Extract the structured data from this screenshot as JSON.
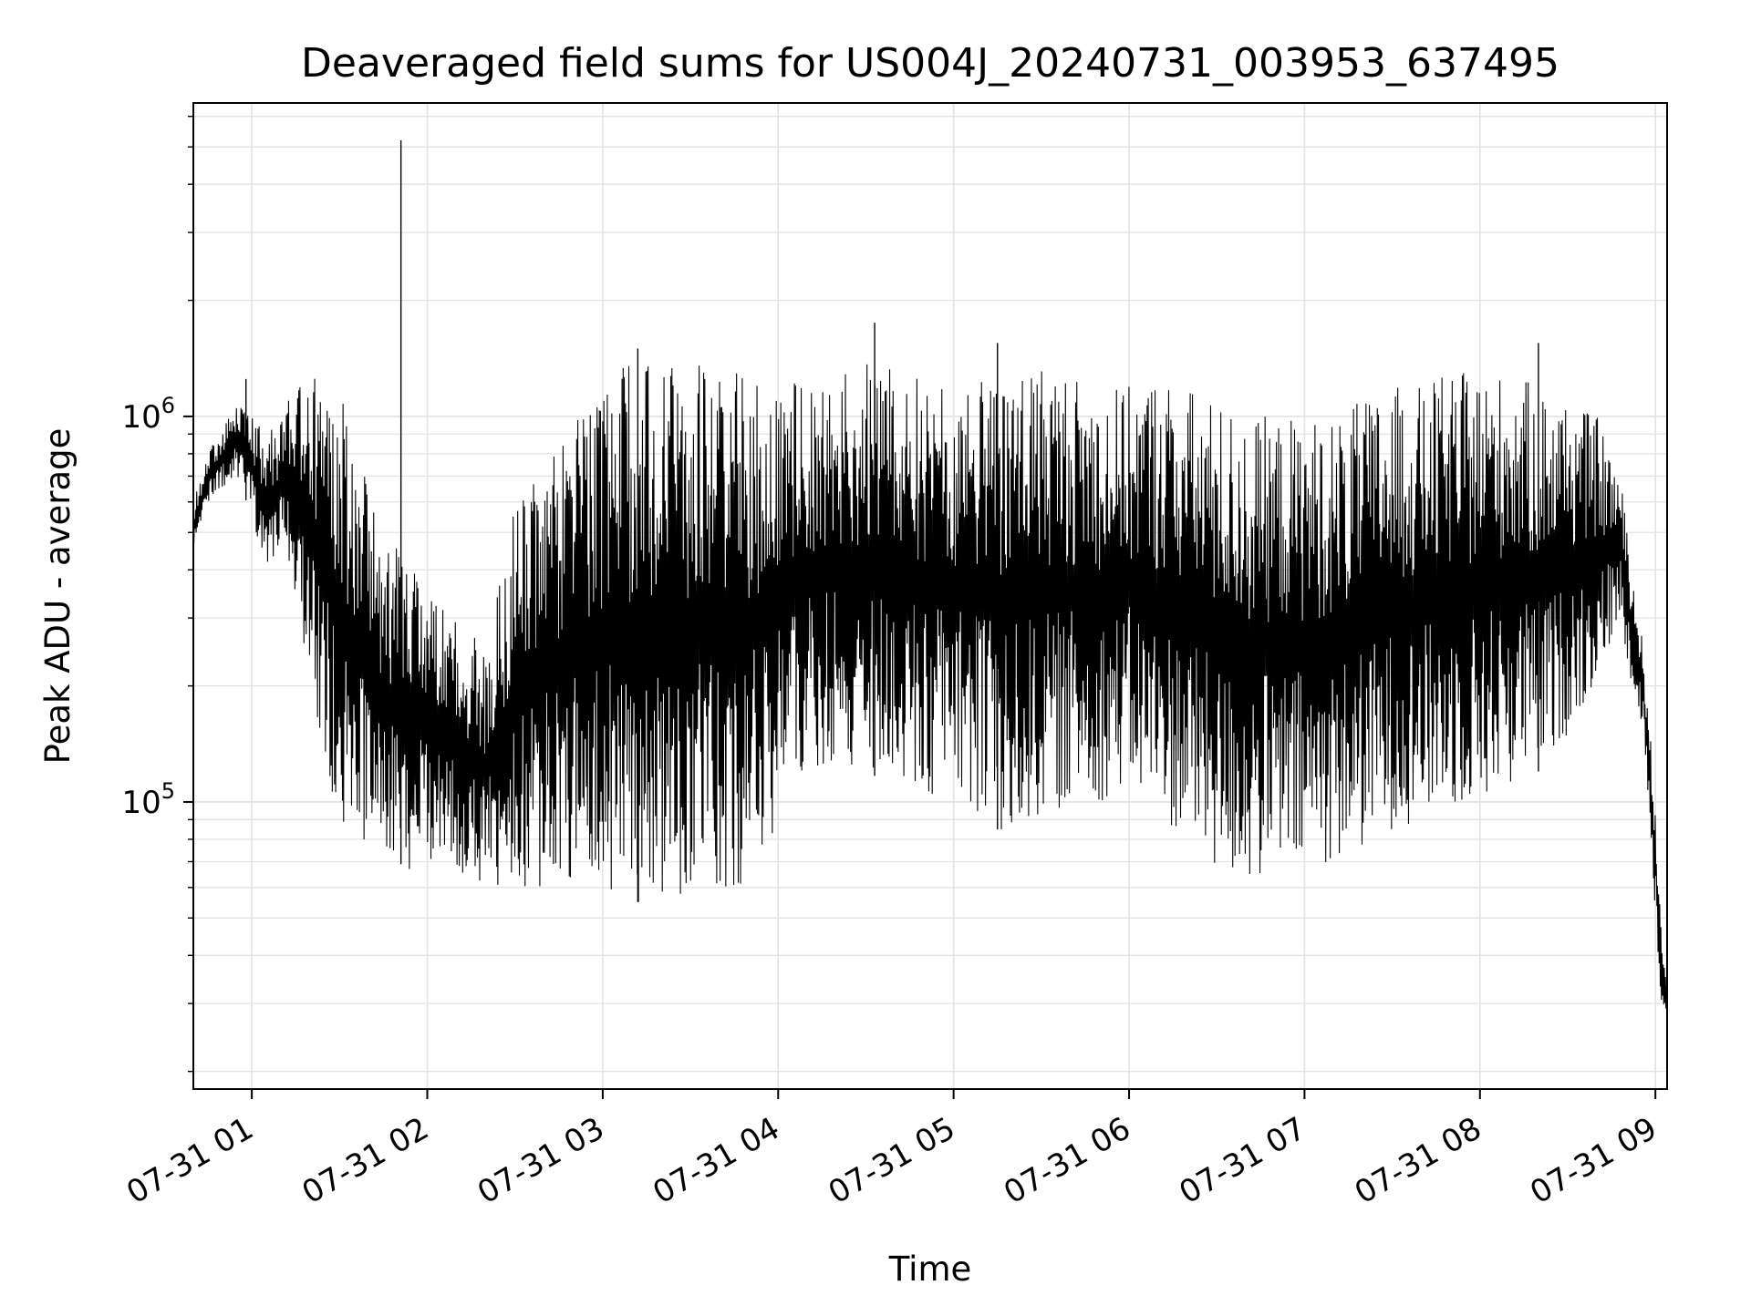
{
  "chart_data": {
    "type": "line",
    "title": "Deaveraged field sums for US004J_20240731_003953_637495",
    "xlabel": "Time",
    "ylabel": "Peak ADU - average",
    "xlim": [
      "2024-07-31T00:40:00",
      "2024-07-31T09:04:00"
    ],
    "yscale": "log",
    "ylim": [
      18000,
      6500000
    ],
    "grid": true,
    "line_color": "#000000",
    "x_ticks": [
      {
        "label": "07-31 01",
        "value": "2024-07-31T01:00:00"
      },
      {
        "label": "07-31 02",
        "value": "2024-07-31T02:00:00"
      },
      {
        "label": "07-31 03",
        "value": "2024-07-31T03:00:00"
      },
      {
        "label": "07-31 04",
        "value": "2024-07-31T04:00:00"
      },
      {
        "label": "07-31 05",
        "value": "2024-07-31T05:00:00"
      },
      {
        "label": "07-31 06",
        "value": "2024-07-31T06:00:00"
      },
      {
        "label": "07-31 07",
        "value": "2024-07-31T07:00:00"
      },
      {
        "label": "07-31 08",
        "value": "2024-07-31T08:00:00"
      },
      {
        "label": "07-31 09",
        "value": "2024-07-31T09:00:00"
      }
    ],
    "y_ticks": [
      {
        "base": "10",
        "exp": "5",
        "value": 100000
      },
      {
        "base": "10",
        "exp": "6",
        "value": 1000000
      }
    ],
    "series": [
      {
        "x": [
          "2024-07-31T00:40:00",
          "2024-07-31T00:45:00",
          "2024-07-31T00:50:00",
          "2024-07-31T00:55:00",
          "2024-07-31T01:00:00",
          "2024-07-31T01:05:00",
          "2024-07-31T01:10:00",
          "2024-07-31T01:15:00",
          "2024-07-31T01:20:00",
          "2024-07-31T01:25:00",
          "2024-07-31T01:30:00",
          "2024-07-31T01:35:00",
          "2024-07-31T01:40:00",
          "2024-07-31T01:45:00",
          "2024-07-31T01:50:00",
          "2024-07-31T01:55:00",
          "2024-07-31T02:00:00",
          "2024-07-31T02:10:00",
          "2024-07-31T02:20:00",
          "2024-07-31T02:30:00",
          "2024-07-31T02:40:00",
          "2024-07-31T02:50:00",
          "2024-07-31T03:00:00",
          "2024-07-31T03:10:00",
          "2024-07-31T03:20:00",
          "2024-07-31T03:30:00",
          "2024-07-31T03:40:00",
          "2024-07-31T03:50:00",
          "2024-07-31T04:00:00",
          "2024-07-31T04:10:00",
          "2024-07-31T04:20:00",
          "2024-07-31T04:30:00",
          "2024-07-31T04:40:00",
          "2024-07-31T04:50:00",
          "2024-07-31T05:00:00",
          "2024-07-31T05:10:00",
          "2024-07-31T05:20:00",
          "2024-07-31T05:30:00",
          "2024-07-31T05:40:00",
          "2024-07-31T05:50:00",
          "2024-07-31T06:00:00",
          "2024-07-31T06:10:00",
          "2024-07-31T06:20:00",
          "2024-07-31T06:30:00",
          "2024-07-31T06:40:00",
          "2024-07-31T06:50:00",
          "2024-07-31T07:00:00",
          "2024-07-31T07:10:00",
          "2024-07-31T07:20:00",
          "2024-07-31T07:30:00",
          "2024-07-31T07:40:00",
          "2024-07-31T07:50:00",
          "2024-07-31T08:00:00",
          "2024-07-31T08:10:00",
          "2024-07-31T08:20:00",
          "2024-07-31T08:30:00",
          "2024-07-31T08:40:00",
          "2024-07-31T08:48:00",
          "2024-07-31T08:52:00",
          "2024-07-31T08:56:00",
          "2024-07-31T09:00:00",
          "2024-07-31T09:02:00",
          "2024-07-31T09:04:00"
        ],
        "low": [
          450000,
          600000,
          650000,
          700000,
          550000,
          400000,
          450000,
          350000,
          200000,
          120000,
          90000,
          80000,
          75000,
          70000,
          70000,
          65000,
          70000,
          65000,
          60000,
          55000,
          60000,
          60000,
          60000,
          55000,
          55000,
          55000,
          60000,
          60000,
          90000,
          120000,
          130000,
          120000,
          110000,
          100000,
          110000,
          90000,
          80000,
          90000,
          100000,
          100000,
          110000,
          90000,
          80000,
          65000,
          60000,
          65000,
          65000,
          70000,
          75000,
          85000,
          90000,
          95000,
          100000,
          110000,
          120000,
          150000,
          200000,
          300000,
          200000,
          150000,
          50000,
          30000,
          28000
        ],
        "high": [
          600000,
          800000,
          950000,
          1100000,
          1000000,
          900000,
          1000000,
          1200000,
          1300000,
          1350000,
          1200000,
          800000,
          700000,
          500000,
          450000,
          400000,
          350000,
          300000,
          250000,
          600000,
          800000,
          1000000,
          1200000,
          1400000,
          1400000,
          1400000,
          1300000,
          1300000,
          1300000,
          1200000,
          1300000,
          1400000,
          1400000,
          1300000,
          1200000,
          1300000,
          1400000,
          1400000,
          1300000,
          1200000,
          1200000,
          1300000,
          1200000,
          1100000,
          1000000,
          1000000,
          1000000,
          1000000,
          1100000,
          1200000,
          1200000,
          1300000,
          1300000,
          1300000,
          1200000,
          1100000,
          1000000,
          700000,
          400000,
          250000,
          100000,
          45000,
          35000
        ],
        "spikes": [
          {
            "x": "2024-07-31T01:51:00",
            "y": 5200000
          },
          {
            "x": "2024-07-31T04:33:00",
            "y": 1750000
          },
          {
            "x": "2024-07-31T00:58:00",
            "y": 1250000
          },
          {
            "x": "2024-07-31T08:20:00",
            "y": 1550000
          },
          {
            "x": "2024-07-31T03:12:00",
            "y": 1500000
          },
          {
            "x": "2024-07-31T05:15:00",
            "y": 1550000
          }
        ]
      }
    ]
  }
}
